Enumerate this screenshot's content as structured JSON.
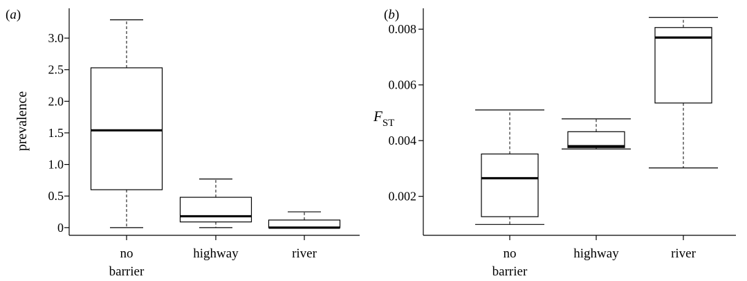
{
  "chart_data": [
    {
      "type": "box",
      "panel_label": "a",
      "ylabel": "prevalence",
      "ylim": [
        -0.1,
        3.45
      ],
      "yticks": [
        0,
        0.5,
        1.0,
        1.5,
        2.0,
        2.5,
        3.0
      ],
      "ytick_labels": [
        "0",
        "0.5",
        "1.0",
        "1.5",
        "2.0",
        "2.5",
        "3.0"
      ],
      "categories": [
        "no barrier",
        "highway",
        "river"
      ],
      "category_lines": [
        [
          "no",
          "barrier"
        ],
        [
          "highway"
        ],
        [
          "river"
        ]
      ],
      "boxes": [
        {
          "min": 0.0,
          "q1": 0.6,
          "median": 1.54,
          "q3": 2.53,
          "max": 3.29
        },
        {
          "min": 0.0,
          "q1": 0.09,
          "median": 0.18,
          "q3": 0.48,
          "max": 0.77
        },
        {
          "min": 0.0,
          "q1": 0.0,
          "median": 0.0,
          "q3": 0.12,
          "max": 0.25
        }
      ]
    },
    {
      "type": "box",
      "panel_label": "b",
      "ylabel": {
        "main": "F",
        "sub": "ST"
      },
      "ylim": [
        0.00065,
        0.0087
      ],
      "yticks": [
        0.002,
        0.004,
        0.006,
        0.008
      ],
      "ytick_labels": [
        "0.002",
        "0.004",
        "0.006",
        "0.008"
      ],
      "categories": [
        "no barrier",
        "highway",
        "river"
      ],
      "category_lines": [
        [
          "no",
          "barrier"
        ],
        [
          "highway"
        ],
        [
          "river"
        ]
      ],
      "boxes": [
        {
          "min": 0.00099,
          "q1": 0.00127,
          "median": 0.00265,
          "q3": 0.00352,
          "max": 0.0051
        },
        {
          "min": 0.0037,
          "q1": 0.00375,
          "median": 0.0038,
          "q3": 0.00432,
          "max": 0.00478
        },
        {
          "min": 0.00302,
          "q1": 0.00535,
          "median": 0.0077,
          "q3": 0.00806,
          "max": 0.00842
        }
      ]
    }
  ]
}
